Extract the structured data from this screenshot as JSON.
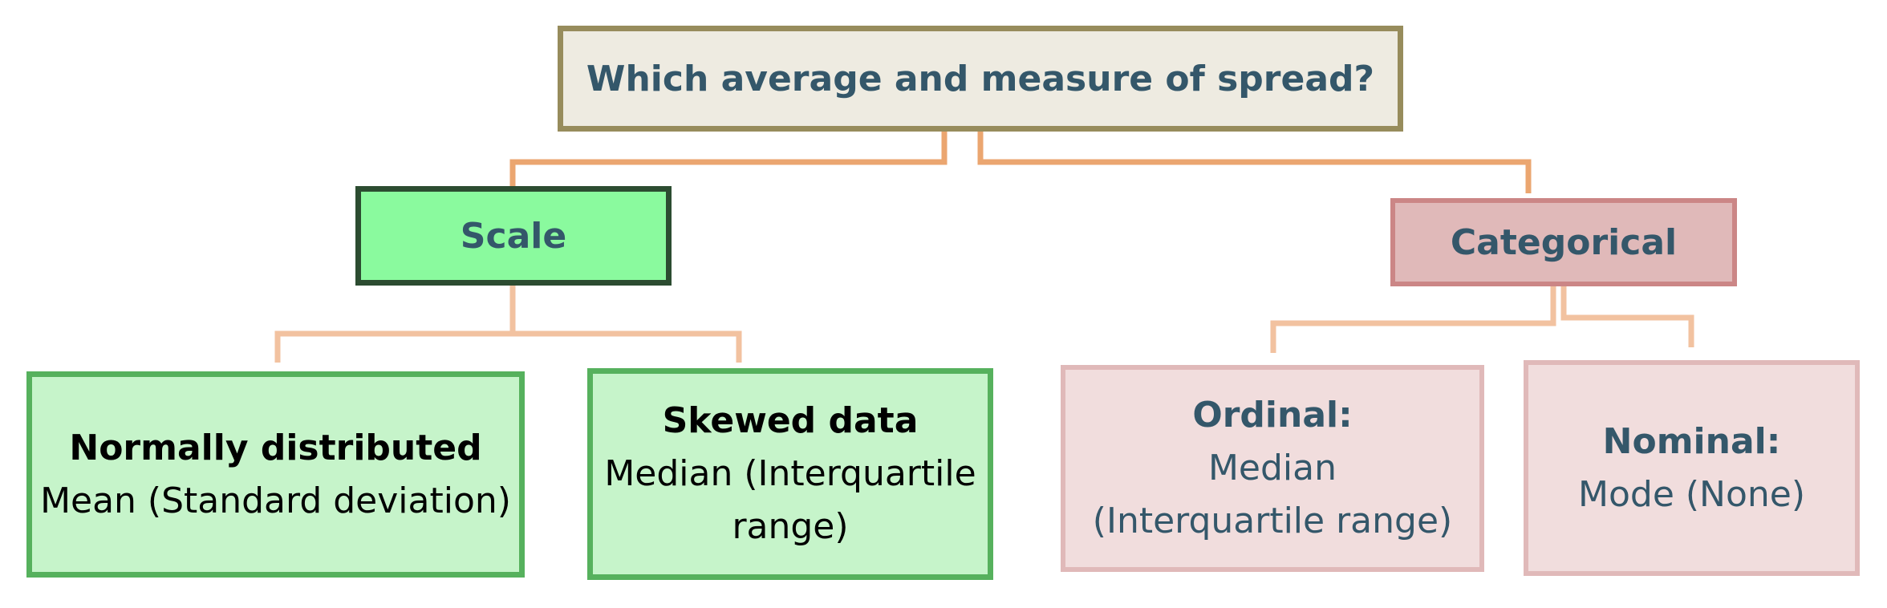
{
  "diagram": {
    "root": {
      "label": "Which average and measure of spread?"
    },
    "scale": {
      "label": "Scale",
      "children": {
        "normal": {
          "title": "Normally distributed",
          "line1": "Mean (Standard deviation)"
        },
        "skewed": {
          "title": "Skewed data",
          "line1": "Median (Interquartile",
          "line2": "range)"
        }
      }
    },
    "categorical": {
      "label": "Categorical",
      "children": {
        "ordinal": {
          "title": "Ordinal:",
          "line1": "Median",
          "line2": "(Interquartile range)"
        },
        "nominal": {
          "title": "Nominal:",
          "line1": "Mode (None)"
        }
      }
    }
  },
  "colors": {
    "connector_top": "#eba670",
    "connector_scale": "#f2c2a0",
    "connector_categorical": "#f2c2a0",
    "root_fill": "#eeebe1",
    "root_border": "#978c5c",
    "scale_fill": "#8afa9e",
    "scale_border": "#2c4c31",
    "categorical_fill": "#e0b9b9",
    "categorical_border": "#cb8686",
    "leaf_scale_fill": "#c6f4ca",
    "leaf_scale_border": "#56b15d",
    "leaf_cat_fill": "#f1dddd",
    "leaf_cat_border": "#e0b9b9",
    "text_main": "#34576a"
  }
}
